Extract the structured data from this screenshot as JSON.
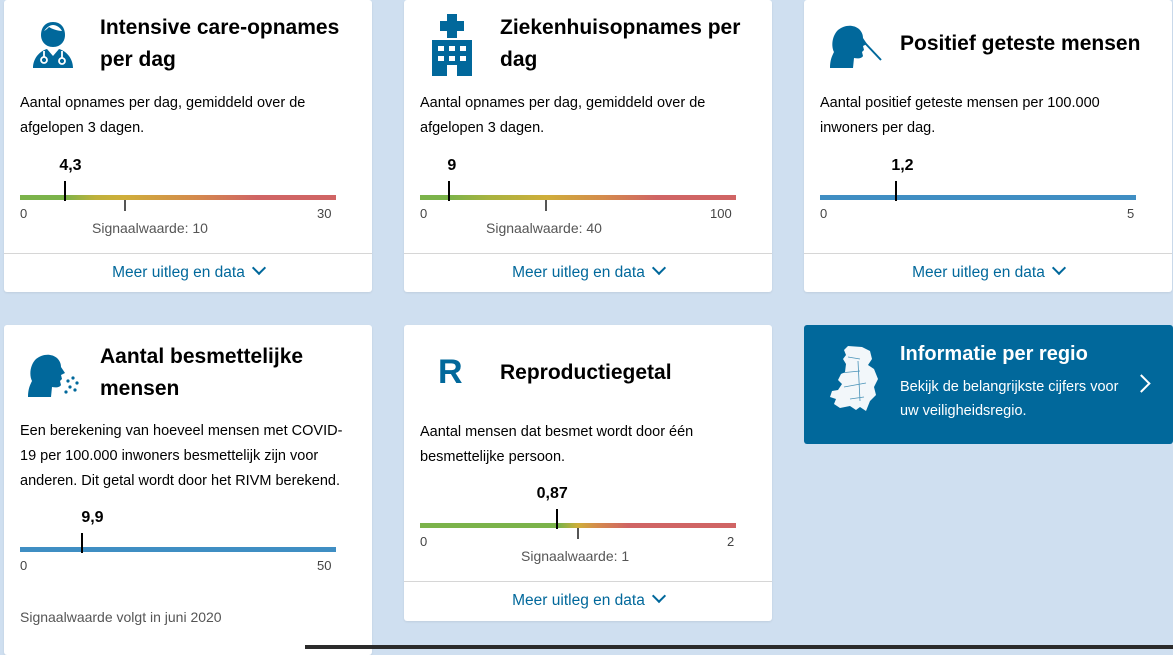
{
  "cards": {
    "ic": {
      "title": "Intensive care-opnames per dag",
      "description": "Aantal opnames per dag, gemiddeld over de afgelopen 3 dagen.",
      "value": "4,3",
      "axis_min": "0",
      "axis_max": "30",
      "signal": "Signaalwaarde: 10",
      "more": "Meer uitleg en data",
      "icon": "doctor-icon"
    },
    "hospital": {
      "title": "Ziekenhuisopnames per dag",
      "description": "Aantal opnames per dag, gemiddeld over de afgelopen 3 dagen.",
      "value": "9",
      "axis_min": "0",
      "axis_max": "100",
      "signal": "Signaalwaarde: 40",
      "more": "Meer uitleg en data",
      "icon": "hospital-icon"
    },
    "positive": {
      "title": "Positief geteste mensen",
      "description": "Aantal positief geteste mensen per 100.000 inwoners per dag.",
      "value": "1,2",
      "axis_min": "0",
      "axis_max": "5",
      "more": "Meer uitleg en data",
      "icon": "swab-test-icon"
    },
    "infectious": {
      "title": "Aantal besmettelijke mensen",
      "description": "Een berekening van hoeveel mensen met COVID-19 per 100.000 inwoners besmettelijk zijn voor anderen. Dit getal wordt door het RIVM berekend.",
      "value": "9,9",
      "axis_min": "0",
      "axis_max": "50",
      "signal": "Signaalwaarde volgt in juni 2020",
      "icon": "sneeze-icon"
    },
    "reproduction": {
      "title": "Reproductiegetal",
      "description": "Aantal mensen dat besmet wordt door één besmettelijke persoon.",
      "value": "0,87",
      "axis_min": "0",
      "axis_max": "2",
      "signal": "Signaalwaarde: 1",
      "more": "Meer uitleg en data",
      "icon_letter": "R"
    }
  },
  "region": {
    "title": "Informatie per regio",
    "description": "Bekijk de belangrijkste cijfers voor uw veiligheidsregio.",
    "icon": "netherlands-map-icon"
  },
  "colors": {
    "accent": "#01689b",
    "bar_blue": "#3f8ec3",
    "green": "#7bb34a",
    "yellow": "#cfae3a",
    "red": "#d06464"
  }
}
